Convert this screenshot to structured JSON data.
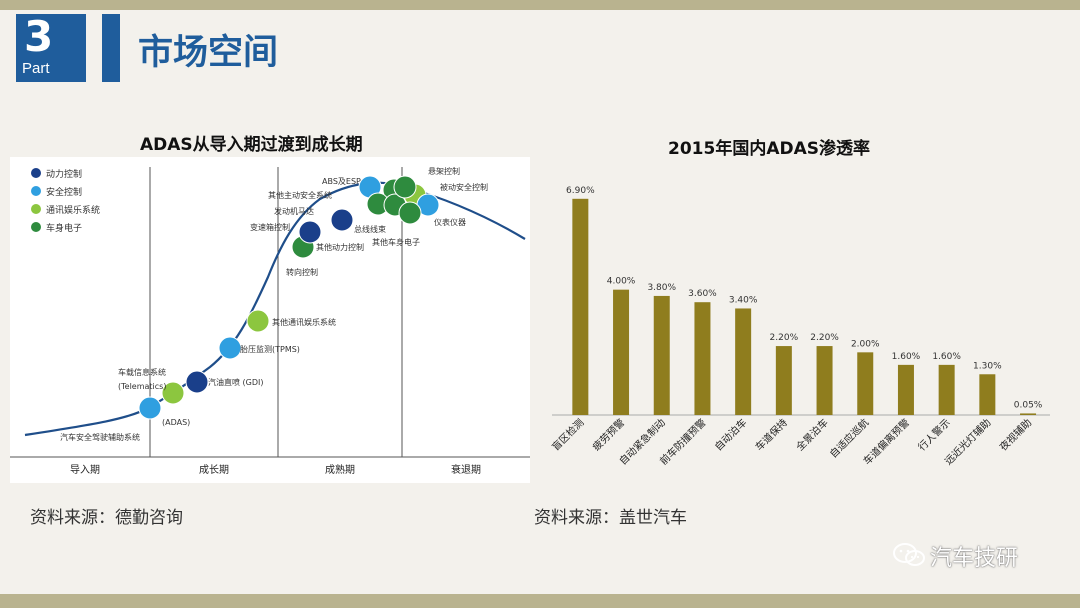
{
  "slide": {
    "part_number": "3",
    "part_word": "Part",
    "title": "市场空间"
  },
  "left_chart": {
    "title": "ADAS从导入期过渡到成长期",
    "source": "资料来源：德勤咨询",
    "legend": [
      {
        "label": "动力控制",
        "color": "#1a3f8a"
      },
      {
        "label": "安全控制",
        "color": "#2f9fe0"
      },
      {
        "label": "通讯娱乐系统",
        "color": "#8cc63f"
      },
      {
        "label": "车身电子",
        "color": "#2e8b3e"
      }
    ],
    "phases": [
      "导入期",
      "成长期",
      "成熟期",
      "衰退期"
    ],
    "points": [
      {
        "label": "汽车安全驾驶辅助系统",
        "category": "安全控制"
      },
      {
        "label": "车载信息系统",
        "category": "通讯娱乐系统"
      },
      {
        "label": "(Telematics)",
        "category": "通讯娱乐系统"
      },
      {
        "label": "(ADAS)",
        "category": "安全控制"
      },
      {
        "label": "汽油直喷 (GDI)",
        "category": "动力控制"
      },
      {
        "label": "胎压监测(TPMS)",
        "category": "安全控制"
      },
      {
        "label": "其他通讯娱乐系统",
        "category": "通讯娱乐系统"
      },
      {
        "label": "转向控制",
        "category": "车身电子"
      },
      {
        "label": "变速箱控制",
        "category": "动力控制"
      },
      {
        "label": "发动机马达",
        "category": "动力控制"
      },
      {
        "label": "其他主动安全系统",
        "category": "安全控制"
      },
      {
        "label": "其他动力控制",
        "category": "动力控制"
      },
      {
        "label": "ABS及ESP",
        "category": "安全控制"
      },
      {
        "label": "总线线束",
        "category": "车身电子"
      },
      {
        "label": "其他车身电子",
        "category": "车身电子"
      },
      {
        "label": "悬架控制",
        "category": "车身电子"
      },
      {
        "label": "被动安全控制",
        "category": "安全控制"
      },
      {
        "label": "仪表仪器",
        "category": "车身电子"
      }
    ]
  },
  "chart_data": {
    "type": "bar",
    "title": "2015年国内ADAS渗透率",
    "categories": [
      "盲区检测",
      "疲劳预警",
      "自动紧急制动",
      "前车防撞预警",
      "自动泊车",
      "车道保持",
      "全景泊车",
      "自适应巡航",
      "车道偏离预警",
      "行人警示",
      "远近光灯辅助",
      "夜视辅助"
    ],
    "values": [
      6.9,
      4.0,
      3.8,
      3.6,
      3.4,
      2.2,
      2.2,
      2.0,
      1.6,
      1.6,
      1.3,
      0.05
    ],
    "value_labels": [
      "6.90%",
      "4.00%",
      "3.80%",
      "3.60%",
      "3.40%",
      "2.20%",
      "2.20%",
      "2.00%",
      "1.60%",
      "1.60%",
      "1.30%",
      "0.05%"
    ],
    "ylim": [
      0,
      7.5
    ],
    "bar_color": "#8f7d1e",
    "source": "资料来源：盖世汽车"
  },
  "watermark": {
    "text": "汽车技研",
    "icon": "wechat-icon"
  },
  "colors": {
    "brand_blue": "#1f5d9c",
    "accent_band": "#b9b38f"
  }
}
